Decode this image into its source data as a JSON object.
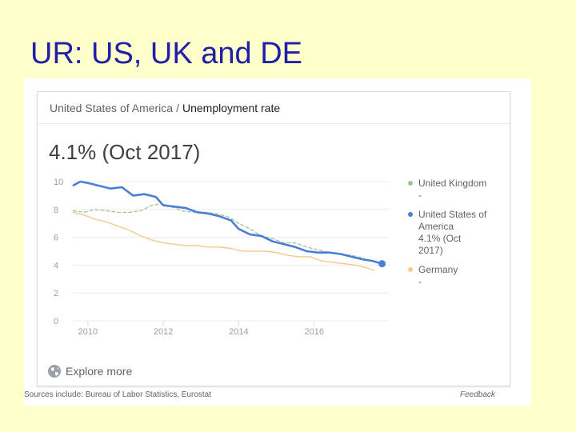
{
  "slide": {
    "title": "UR: US, UK and DE"
  },
  "card": {
    "breadcrumb_country": "United States of America",
    "breadcrumb_sep": "/",
    "breadcrumb_metric": "Unemployment rate",
    "headline": "4.1% (Oct 2017)",
    "explore_label": "Explore more",
    "sources": "Sources include: Bureau of Labor Statistics, Eurostat",
    "feedback": "Feedback"
  },
  "colors": {
    "us": "#4a7fd6",
    "uk": "#a8c99a",
    "de": "#f4c98f",
    "grid": "#ececec"
  },
  "legend": [
    {
      "name": "United Kingdom",
      "sub": "-",
      "color": "#9fc48f"
    },
    {
      "name": "United States of America",
      "sub": "4.1% (Oct 2017)",
      "color": "#4a7fd6"
    },
    {
      "name": "Germany",
      "sub": "-",
      "color": "#f4c98f"
    }
  ],
  "chart_data": {
    "type": "line",
    "title": "",
    "xlabel": "",
    "ylabel": "",
    "x_ticks": [
      "2010",
      "2012",
      "2014",
      "2016"
    ],
    "y_ticks": [
      "0",
      "2",
      "4",
      "6",
      "8",
      "10"
    ],
    "xlim": [
      2009.6,
      2018.0
    ],
    "ylim": [
      0,
      10
    ],
    "grid": true,
    "legend_position": "right",
    "series": [
      {
        "name": "United Kingdom",
        "key": "uk",
        "x": [
          2009.6,
          2009.9,
          2010.2,
          2010.5,
          2010.8,
          2011.1,
          2011.4,
          2011.7,
          2011.95,
          2012.2,
          2012.5,
          2012.8,
          2013.1,
          2013.4,
          2013.7,
          2014.0,
          2014.3,
          2014.6,
          2014.9,
          2015.2,
          2015.5,
          2015.8,
          2016.1,
          2016.4,
          2016.7,
          2017.0,
          2017.3,
          2017.45
        ],
        "y": [
          7.9,
          7.8,
          8.0,
          7.9,
          7.8,
          7.8,
          7.9,
          8.3,
          8.4,
          8.2,
          7.9,
          7.8,
          7.8,
          7.7,
          7.5,
          7.0,
          6.6,
          6.1,
          5.9,
          5.6,
          5.6,
          5.3,
          5.1,
          4.9,
          4.8,
          4.7,
          4.5,
          4.3
        ]
      },
      {
        "name": "United States of America",
        "key": "us",
        "x": [
          2009.6,
          2009.8,
          2010.0,
          2010.3,
          2010.6,
          2010.9,
          2011.2,
          2011.5,
          2011.8,
          2012.0,
          2012.3,
          2012.6,
          2012.9,
          2013.2,
          2013.5,
          2013.8,
          2014.0,
          2014.3,
          2014.6,
          2014.9,
          2015.2,
          2015.5,
          2015.8,
          2016.1,
          2016.4,
          2016.7,
          2017.0,
          2017.3,
          2017.55,
          2017.8
        ],
        "y": [
          9.7,
          10.0,
          9.9,
          9.7,
          9.5,
          9.6,
          9.0,
          9.1,
          8.9,
          8.3,
          8.2,
          8.1,
          7.8,
          7.7,
          7.5,
          7.2,
          6.6,
          6.2,
          6.1,
          5.7,
          5.5,
          5.3,
          5.0,
          4.9,
          4.9,
          4.8,
          4.6,
          4.4,
          4.3,
          4.1
        ]
      },
      {
        "name": "Germany",
        "key": "de",
        "x": [
          2009.6,
          2009.9,
          2010.2,
          2010.5,
          2010.8,
          2011.1,
          2011.4,
          2011.7,
          2012.0,
          2012.3,
          2012.6,
          2012.9,
          2013.2,
          2013.5,
          2013.8,
          2014.1,
          2014.4,
          2014.7,
          2015.0,
          2015.3,
          2015.6,
          2015.9,
          2016.2,
          2016.5,
          2016.8,
          2017.1,
          2017.4,
          2017.6
        ],
        "y": [
          7.8,
          7.6,
          7.3,
          7.1,
          6.8,
          6.5,
          6.1,
          5.8,
          5.6,
          5.5,
          5.4,
          5.4,
          5.3,
          5.3,
          5.2,
          5.0,
          5.0,
          5.0,
          4.9,
          4.7,
          4.6,
          4.6,
          4.3,
          4.2,
          4.1,
          4.0,
          3.8,
          3.6
        ]
      }
    ]
  }
}
